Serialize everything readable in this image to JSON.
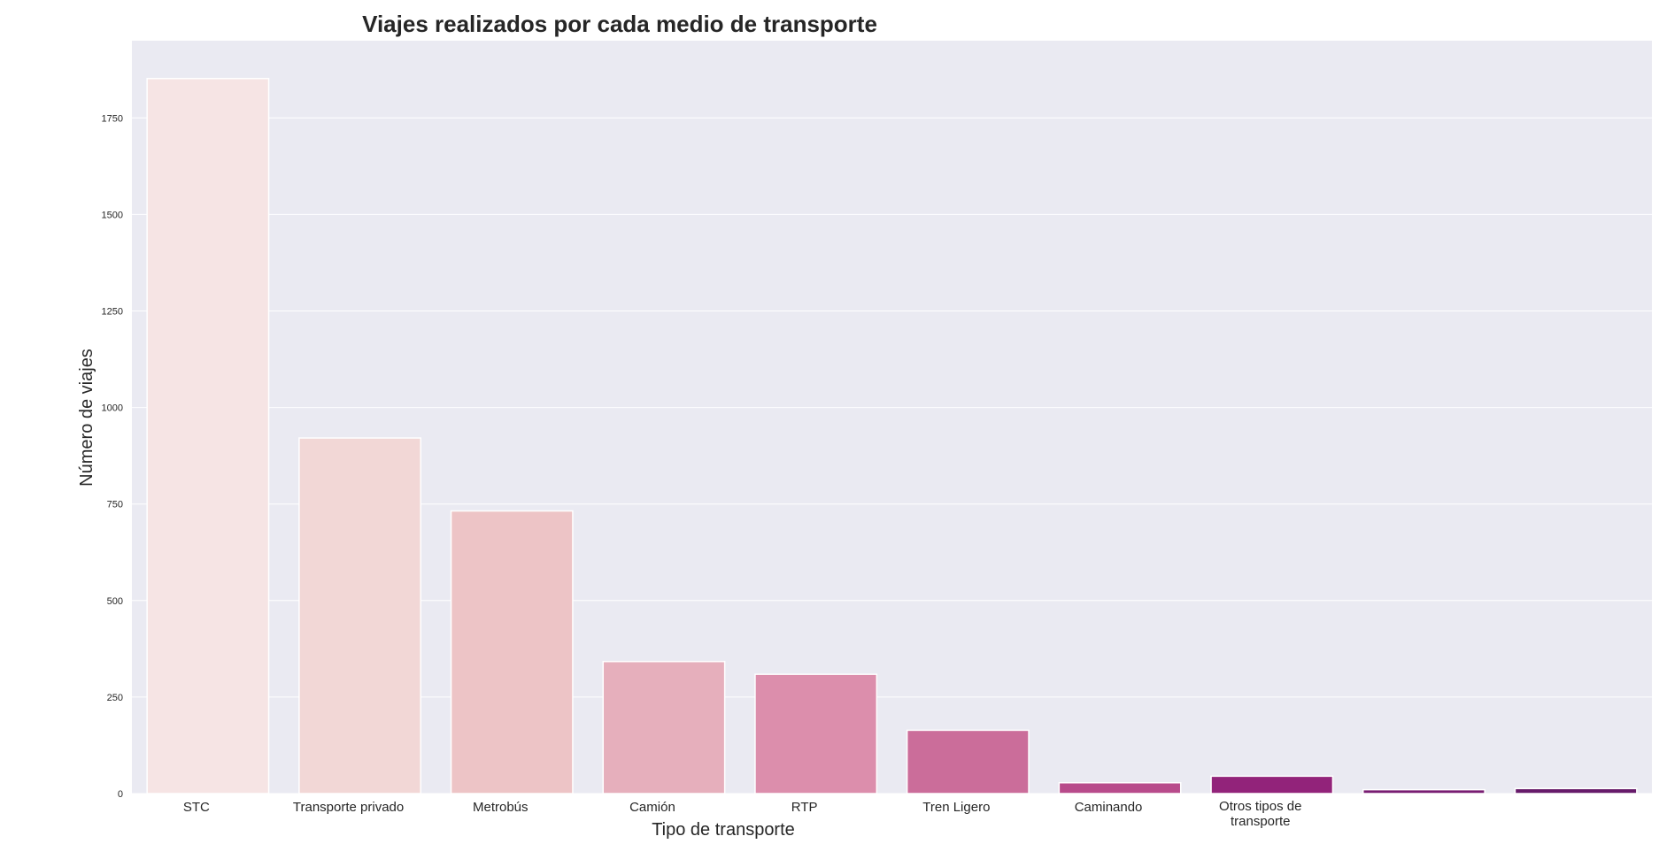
{
  "chart_data": {
    "type": "bar",
    "title": "Viajes realizados por cada medio de transporte",
    "xlabel": "Tipo de transporte",
    "ylabel": "Número de viajes",
    "categories": [
      "STC",
      "Transporte privado",
      "Metrobús",
      "Camión",
      "RTP",
      "Tren Ligero",
      "Caminando",
      "Otros tipos de transporte",
      "",
      ""
    ],
    "values": [
      1852,
      921,
      732,
      342,
      309,
      164,
      28,
      45,
      10,
      13
    ],
    "colors": [
      "#f6e4e4",
      "#f2d7d6",
      "#edc4c6",
      "#e6afbc",
      "#dc8eac",
      "#cb6d9a",
      "#b84b8b",
      "#92237a",
      "#781d72",
      "#661a6a"
    ],
    "ylim": [
      0,
      1950
    ],
    "yticks": [
      0,
      250,
      500,
      750,
      1000,
      1250,
      1500,
      1750
    ],
    "grid": true,
    "background": "#eaeaf2",
    "grid_color": "#ffffff"
  }
}
